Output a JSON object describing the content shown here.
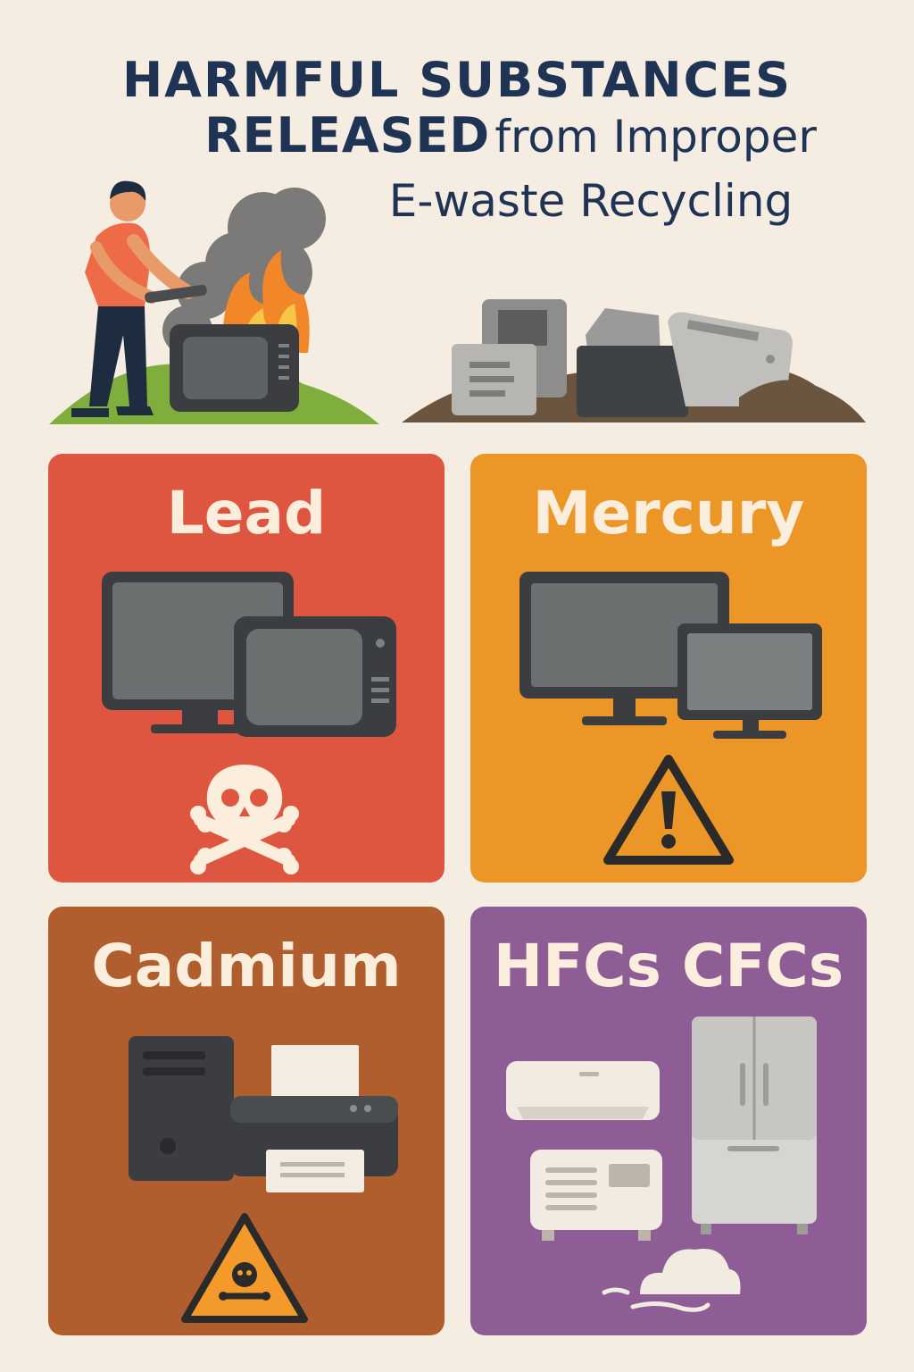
{
  "title": {
    "line1": "HARMFUL SUBSTANCES",
    "line2_bold": "RELEASED",
    "line2_rest": "from Improper",
    "line3": "E-waste Recycling"
  },
  "cards": [
    {
      "label": "Lead",
      "color": "#df5640",
      "icon": "skull-crossbones-icon"
    },
    {
      "label": "Mercury",
      "color": "#ec9628",
      "icon": "warning-triangle-icon"
    },
    {
      "label": "Cadmium",
      "color": "#b05e2e",
      "icon": "toxic-warning-icon"
    },
    {
      "label": "HFCs CFCs",
      "color": "#8e5d95",
      "icon": "cloud-icon"
    }
  ]
}
